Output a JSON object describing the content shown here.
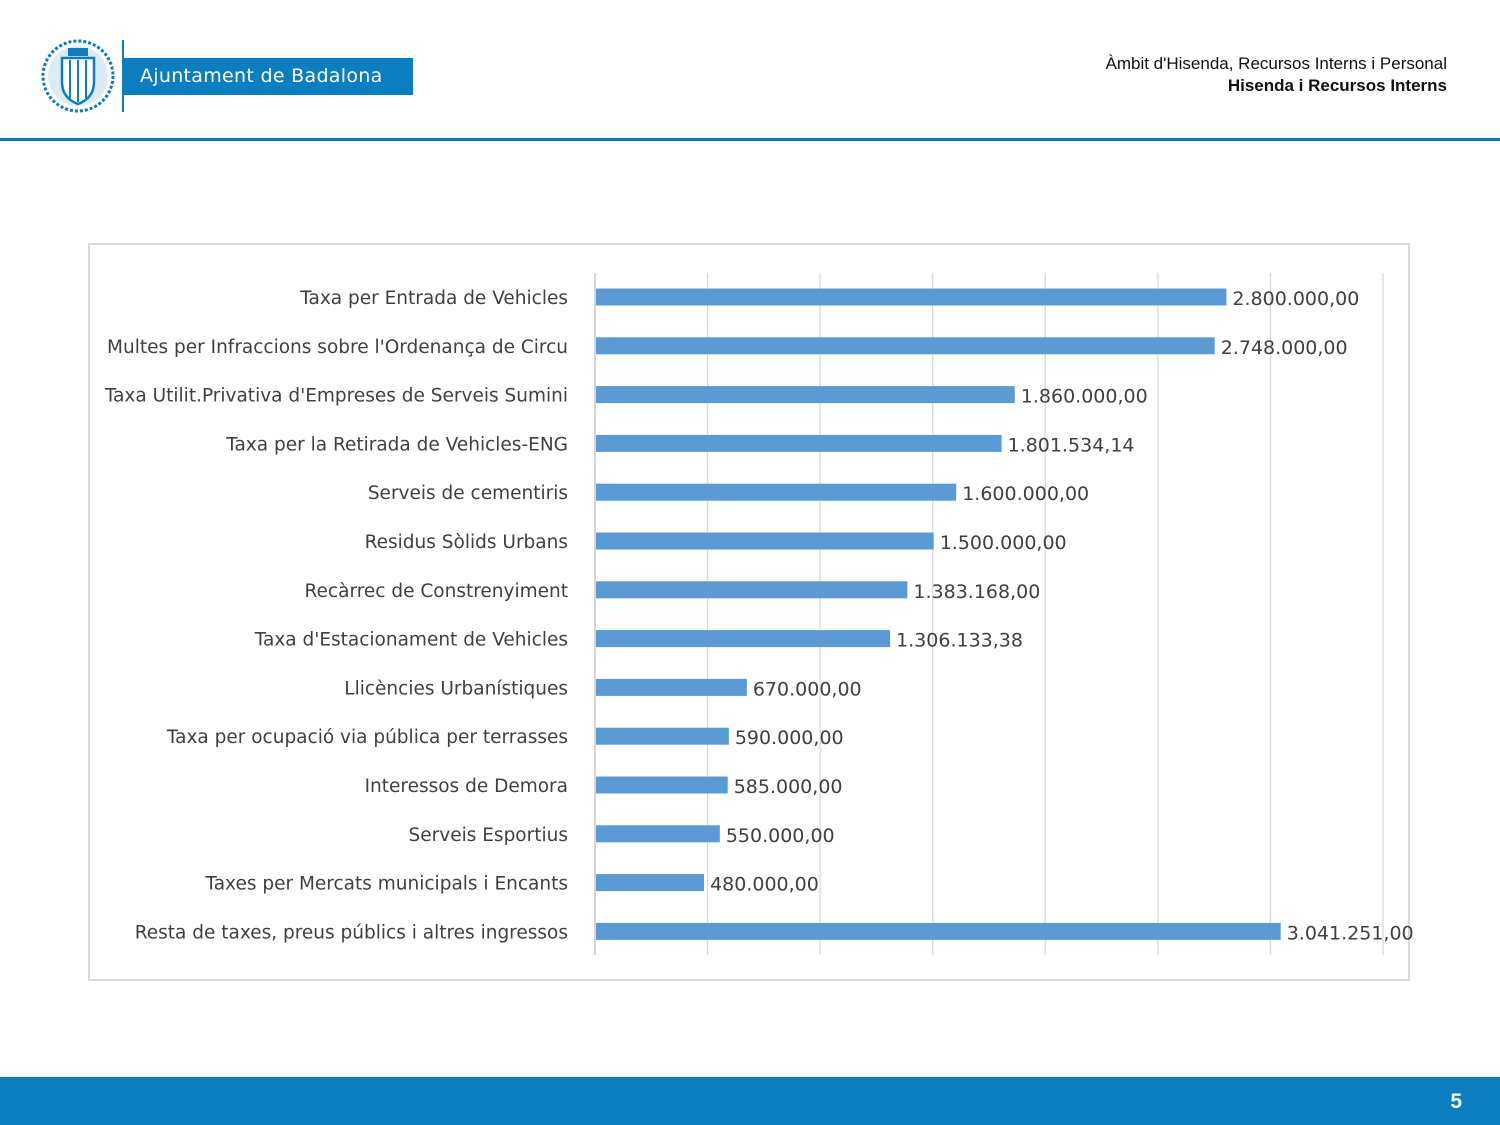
{
  "header": {
    "logo_text": "Ajuntament de Badalona",
    "department": "Àmbit d'Hisenda, Recursos Interns i Personal",
    "section": "Hisenda i Recursos Interns",
    "accent_color": "#0b7dc1"
  },
  "footer": {
    "page_number": "5",
    "bar_color": "#0b7dc1"
  },
  "chart_data": {
    "type": "bar",
    "orientation": "horizontal",
    "bar_color": "#5b9bd5",
    "xlim": [
      0,
      3500000
    ],
    "x_gridline_step": 500000,
    "grid": true,
    "x_tick_labels_visible": false,
    "categories": [
      "Taxa per Entrada de Vehicles",
      "Multes per Infraccions sobre l'Ordenança de Circu",
      "Taxa Utilit.Privativa d'Empreses de Serveis Sumini",
      "Taxa per la Retirada de Vehicles-ENG",
      "Serveis de cementiris",
      "Residus Sòlids Urbans",
      "Recàrrec de Constrenyiment",
      "Taxa d'Estacionament de Vehicles",
      "Llicències Urbanístiques",
      "Taxa per ocupació via pública per terrasses",
      "Interessos de Demora",
      "Serveis Esportius",
      "Taxes per Mercats municipals i Encants",
      "Resta de taxes, preus públics i altres ingressos"
    ],
    "values": [
      2800000,
      2748000,
      1860000,
      1801534.14,
      1600000,
      1500000,
      1383168,
      1306133.38,
      670000,
      590000,
      585000,
      550000,
      480000,
      3041251
    ],
    "value_labels": [
      "2.800.000,00",
      "2.748.000,00",
      "1.860.000,00",
      "1.801.534,14",
      "1.600.000,00",
      "1.500.000,00",
      "1.383.168,00",
      "1.306.133,38",
      "670.000,00",
      "590.000,00",
      "585.000,00",
      "550.000,00",
      "480.000,00",
      "3.041.251,00"
    ]
  }
}
